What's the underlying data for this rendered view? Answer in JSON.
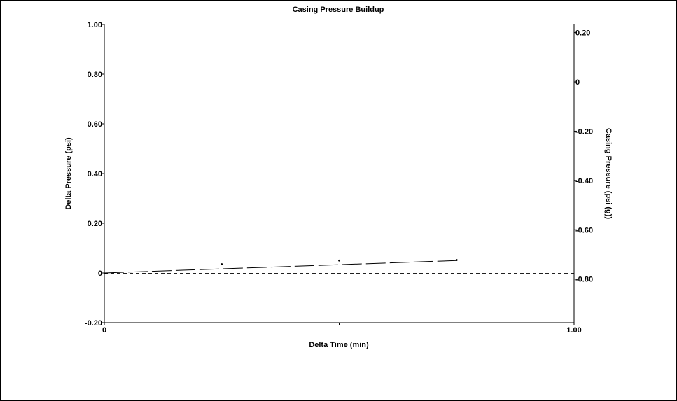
{
  "chart_data": {
    "type": "line",
    "title": "Casing Pressure Buildup",
    "xlabel": "Delta Time (min)",
    "ylabel": "Delta Pressure (psi)",
    "y2label": "Casing Pressure (psi (g))",
    "xlim": [
      0,
      1
    ],
    "ylim": [
      -0.2,
      1.0
    ],
    "y2lim": [
      -0.977,
      0.233
    ],
    "x_ticks": [
      {
        "value": 0,
        "label": "0"
      },
      {
        "value": 0.5,
        "label": ""
      },
      {
        "value": 1,
        "label": "1.00"
      }
    ],
    "y_ticks": [
      {
        "value": 1.0,
        "label": "1.00"
      },
      {
        "value": 0.8,
        "label": "0.80"
      },
      {
        "value": 0.6,
        "label": "0.60"
      },
      {
        "value": 0.4,
        "label": "0.40"
      },
      {
        "value": 0.2,
        "label": "0.20"
      },
      {
        "value": 0,
        "label": "0"
      },
      {
        "value": -0.2,
        "label": "-0.20"
      }
    ],
    "y2_ticks": [
      {
        "value": 0.2,
        "label": "0.20"
      },
      {
        "value": 0,
        "label": "0"
      },
      {
        "value": -0.2,
        "label": "-0.20"
      },
      {
        "value": -0.4,
        "label": "-0.40"
      },
      {
        "value": -0.6,
        "label": "-0.60"
      },
      {
        "value": -0.8,
        "label": "-0.80"
      }
    ],
    "series": [
      {
        "axis": "y",
        "style": "long-dash",
        "color": "#000000",
        "x": [
          0,
          0.75
        ],
        "y": [
          0,
          0.05
        ]
      },
      {
        "axis": "y",
        "style": "points",
        "color": "#000000",
        "x": [
          0.25,
          0.5,
          0.75
        ],
        "y": [
          0.035,
          0.05,
          0.052
        ]
      },
      {
        "axis": "y2",
        "style": "short-dash",
        "color": "#000000",
        "x": [
          0,
          1
        ],
        "y": [
          -0.777,
          -0.777
        ]
      }
    ],
    "grid": false
  }
}
